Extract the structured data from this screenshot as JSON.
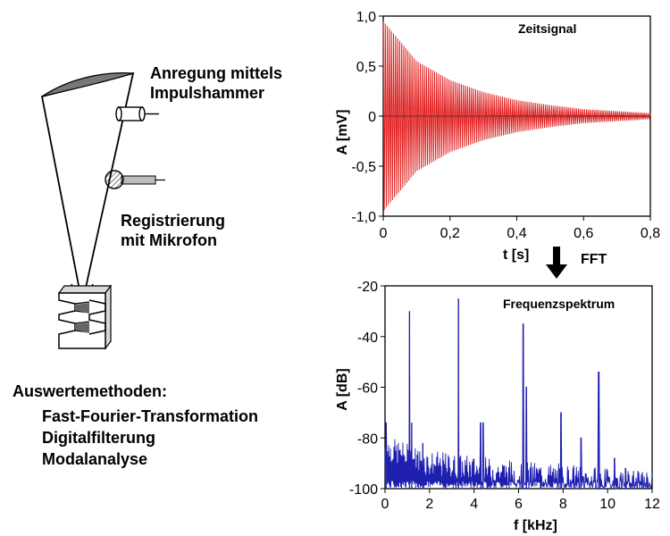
{
  "left": {
    "annotation_hammer": [
      "Anregung mittels",
      "Impulshammer"
    ],
    "annotation_mic": [
      "Registrierung",
      "mit Mikrofon"
    ],
    "methods_title": "Auswertemethoden:",
    "methods": [
      "Fast-Fourier-Transformation",
      "Digitalfilterung",
      "Modalanalyse"
    ]
  },
  "arrow_label": "FFT",
  "colors": {
    "time_signal": "#e02020",
    "spectrum": "#2020b0"
  },
  "chart_data": [
    {
      "type": "line",
      "title": "Zeitsignal",
      "xlabel": "t [s]",
      "ylabel": "A [mV]",
      "xlim": [
        0,
        0.8
      ],
      "ylim": [
        -1.0,
        1.0
      ],
      "xticks": [
        "0",
        "0,2",
        "0,4",
        "0,6",
        "0,8"
      ],
      "yticks": [
        "1,0",
        "0,5",
        "0",
        "-0,5",
        "-1,0"
      ],
      "envelope": {
        "x": [
          0,
          0.1,
          0.2,
          0.3,
          0.4,
          0.5,
          0.6,
          0.7,
          0.8
        ],
        "amplitude": [
          0.95,
          0.55,
          0.36,
          0.24,
          0.16,
          0.11,
          0.07,
          0.05,
          0.03
        ]
      },
      "oscillation_count": 130
    },
    {
      "type": "line",
      "title": "Frequenzspektrum",
      "xlabel": "f [kHz]",
      "ylabel": "A [dB]",
      "xlim": [
        0,
        12
      ],
      "ylim": [
        -100,
        -20
      ],
      "xticks": [
        "0",
        "2",
        "4",
        "6",
        "8",
        "10",
        "12"
      ],
      "yticks": [
        "-20",
        "-40",
        "-60",
        "-80",
        "-100"
      ],
      "peaks": [
        {
          "f": 0.05,
          "db": -74
        },
        {
          "f": 1.1,
          "db": -30
        },
        {
          "f": 1.2,
          "db": -74
        },
        {
          "f": 1.7,
          "db": -82
        },
        {
          "f": 3.3,
          "db": -25
        },
        {
          "f": 4.3,
          "db": -74
        },
        {
          "f": 4.4,
          "db": -74
        },
        {
          "f": 6.2,
          "db": -35
        },
        {
          "f": 6.35,
          "db": -60
        },
        {
          "f": 7.9,
          "db": -70
        },
        {
          "f": 8.8,
          "db": -80
        },
        {
          "f": 9.6,
          "db": -54
        },
        {
          "f": 10.3,
          "db": -88
        },
        {
          "f": 10.8,
          "db": -92
        }
      ],
      "noise_floor_db": {
        "f": [
          0,
          2,
          4,
          6,
          8,
          10,
          12
        ],
        "db": [
          -84,
          -90,
          -92,
          -94,
          -95,
          -97,
          -98
        ]
      }
    }
  ]
}
